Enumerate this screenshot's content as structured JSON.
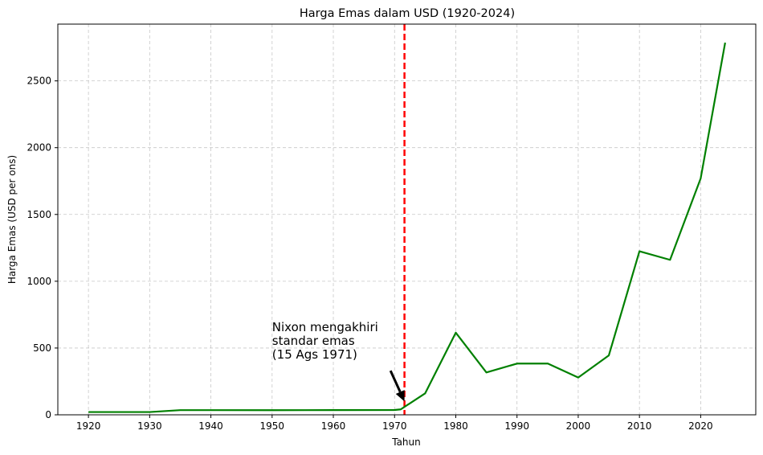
{
  "chart_data": {
    "type": "line",
    "title": "Harga Emas dalam USD (1920-2024)",
    "xlabel": "Tahun",
    "ylabel": "Harga Emas (USD per ons)",
    "xlim": [
      1915,
      2029
    ],
    "ylim": [
      0,
      2925
    ],
    "xticks": [
      1920,
      1930,
      1940,
      1950,
      1960,
      1970,
      1980,
      1990,
      2000,
      2010,
      2020
    ],
    "yticks": [
      0,
      500,
      1000,
      1500,
      2000,
      2500
    ],
    "grid": true,
    "series": [
      {
        "color": "#008000",
        "x": [
          1920,
          1930,
          1935,
          1940,
          1950,
          1960,
          1970,
          1971,
          1975,
          1980,
          1985,
          1990,
          1995,
          2000,
          2005,
          2010,
          2015,
          2020,
          2024
        ],
        "y": [
          20.68,
          20.68,
          35,
          35,
          34.72,
          35.27,
          36.02,
          40.62,
          160.86,
          615,
          317.26,
          383.51,
          384.17,
          279.11,
          444.74,
          1224.53,
          1160.06,
          1769.64,
          2786
        ]
      }
    ],
    "vline": {
      "x": 1971.62,
      "color": "#ff0000",
      "style": "dashed"
    },
    "annotation": {
      "lines": [
        "Nixon mengakhiri",
        "standar emas",
        "(15 Ags 1971)"
      ],
      "text_x": 1950,
      "text_y": 420,
      "arrow_to_x": 1971.62,
      "arrow_to_y": 100
    }
  }
}
